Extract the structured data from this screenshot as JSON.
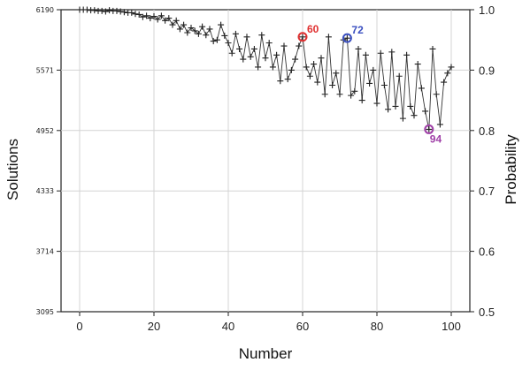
{
  "chart_data": {
    "type": "line",
    "xlabel": "Number",
    "ylabel_left": "Solutions",
    "ylabel_right": "Probability",
    "xlim": [
      -5,
      105
    ],
    "x_ticks": [
      0,
      20,
      40,
      60,
      80,
      100
    ],
    "ylim_right": [
      0.5,
      1.0
    ],
    "y_right_ticks": [
      "0.5",
      "0.6",
      "0.7",
      "0.8",
      "0.9",
      "1.0"
    ],
    "ylim_left": [
      3095,
      6190
    ],
    "y_left_ticks": [
      "3095",
      "3714",
      "4333",
      "4952",
      "5571",
      "6190"
    ],
    "grid": true,
    "series": [
      {
        "marker": "+",
        "x": [
          0,
          1,
          2,
          3,
          4,
          5,
          6,
          7,
          8,
          9,
          10,
          11,
          12,
          13,
          14,
          15,
          16,
          17,
          18,
          19,
          20,
          21,
          22,
          23,
          24,
          25,
          26,
          27,
          28,
          29,
          30,
          31,
          32,
          33,
          34,
          35,
          36,
          37,
          38,
          39,
          40,
          41,
          42,
          43,
          44,
          45,
          46,
          47,
          48,
          49,
          50,
          51,
          52,
          53,
          54,
          55,
          56,
          57,
          58,
          59,
          60,
          61,
          62,
          63,
          64,
          65,
          66,
          67,
          68,
          69,
          70,
          71,
          72,
          73,
          74,
          75,
          76,
          77,
          78,
          79,
          80,
          81,
          82,
          83,
          84,
          85,
          86,
          87,
          88,
          89,
          90,
          91,
          92,
          93,
          94,
          95,
          96,
          97,
          98,
          99,
          100
        ],
        "y": [
          1.0,
          1.0,
          1.0,
          0.999,
          0.999,
          0.998,
          0.998,
          0.997,
          0.999,
          0.998,
          0.998,
          0.997,
          0.996,
          0.995,
          0.995,
          0.993,
          0.992,
          0.988,
          0.99,
          0.986,
          0.989,
          0.984,
          0.99,
          0.982,
          0.986,
          0.975,
          0.982,
          0.968,
          0.975,
          0.962,
          0.97,
          0.965,
          0.96,
          0.972,
          0.958,
          0.968,
          0.948,
          0.95,
          0.975,
          0.957,
          0.945,
          0.928,
          0.96,
          0.935,
          0.918,
          0.955,
          0.922,
          0.935,
          0.905,
          0.958,
          0.92,
          0.945,
          0.905,
          0.925,
          0.882,
          0.94,
          0.885,
          0.9,
          0.918,
          0.94,
          0.955,
          0.905,
          0.89,
          0.91,
          0.88,
          0.92,
          0.86,
          0.955,
          0.875,
          0.895,
          0.86,
          0.95,
          0.953,
          0.858,
          0.865,
          0.935,
          0.85,
          0.925,
          0.878,
          0.9,
          0.845,
          0.928,
          0.875,
          0.835,
          0.93,
          0.84,
          0.89,
          0.82,
          0.925,
          0.84,
          0.825,
          0.91,
          0.87,
          0.832,
          0.802,
          0.935,
          0.86,
          0.81,
          0.88,
          0.895,
          0.905
        ]
      }
    ],
    "annotations": [
      {
        "label": "60",
        "x": 60,
        "y": 0.955,
        "color": "#e03030"
      },
      {
        "label": "72",
        "x": 72,
        "y": 0.953,
        "color": "#3a4fc0"
      },
      {
        "label": "94",
        "x": 94,
        "y": 0.802,
        "color": "#a040a8"
      }
    ]
  }
}
